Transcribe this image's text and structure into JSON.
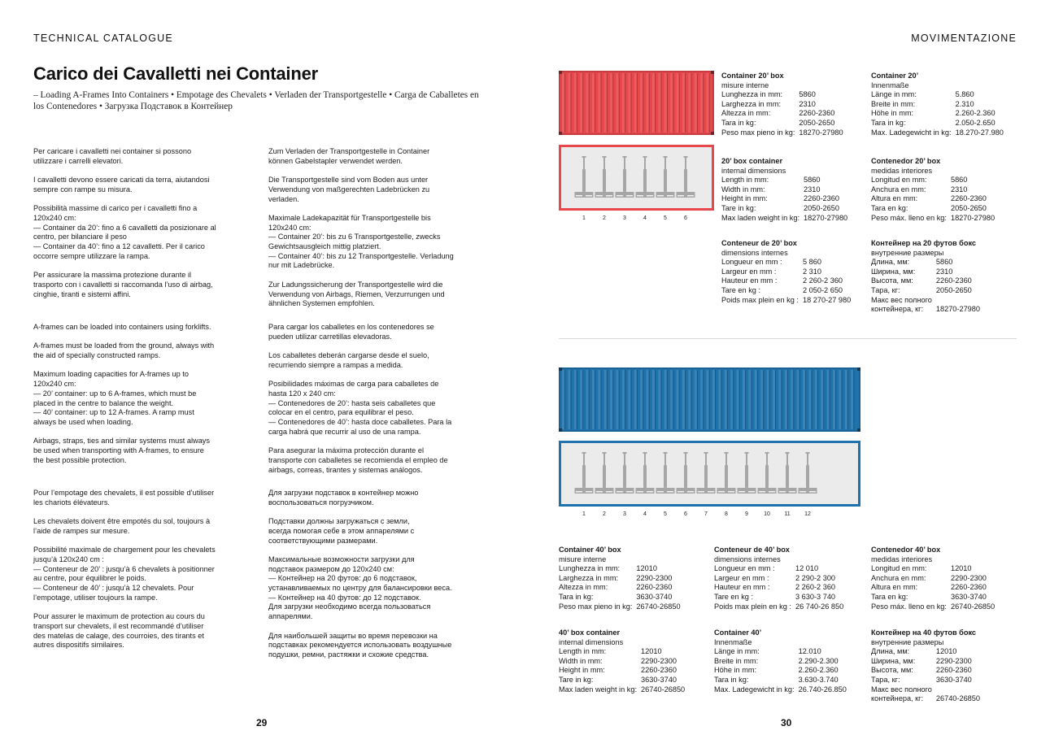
{
  "header": {
    "left": "TECHNICAL CATALOGUE",
    "right": "MOVIMENTAZIONE"
  },
  "title": "Carico dei Cavalletti nei Container",
  "subtitle": "– Loading A-Frames Into Containers • Empotage des Chevalets • Verladen der Transportgestelle • Carga de Caballetes en los Contenedores • Загрузка Подставок в Контейнер",
  "columns": {
    "it": [
      "Per caricare i cavalletti nei container si possono\nutilizzare i carrelli elevatori.",
      "I cavalletti devono essere caricati da terra, aiutandosi\nsempre con rampe su misura.",
      "Possibilità massime di carico per i cavalletti fino a\n120x240 cm:\n— Container da 20’: fino a 6 cavalletti da posizionare al\ncentro, per bilanciare il peso\n— Container da 40’: fino a 12 cavalletti. Per il carico\noccorre sempre utilizzare la rampa.",
      "Per assicurare la massima protezione durante il\ntrasporto con i cavalletti si raccomanda l’uso di airbag,\ncinghie, tiranti e sistemi affini."
    ],
    "en": [
      "A-frames can be loaded into containers using forklifts.",
      "A-frames must be loaded from the ground, always with\nthe aid of specially constructed ramps.",
      "Maximum loading capacities for A-frames up to\n120x240 cm:\n— 20’ container: up to 6 A-frames, which must be\nplaced in the centre to balance the weight.\n— 40’ container: up to 12 A-frames. A ramp must\nalways be used when loading.",
      "Airbags, straps, ties and similar systems must always\nbe used when transporting with A-frames, to ensure\nthe best possible protection."
    ],
    "fr": [
      "Pour l’empotage des chevalets, il est possible d’utiliser\nles chariots élévateurs.",
      "Les chevalets doivent être empotés du sol, toujours à\nl’aide de rampes sur mesure.",
      "Possibilité maximale de chargement pour les chevalets\njusqu’à 120x240 cm :\n— Conteneur de 20’ : jusqu’à 6 chevalets à positionner\nau centre, pour équilibrer le poids.\n— Conteneur de 40’ : jusqu’à 12 chevalets. Pour\nl’empotage, utiliser toujours la rampe.",
      "Pour assurer le maximum de protection au cours du\ntransport sur chevalets, il est recommandé d’utiliser\ndes matelas de calage, des courroies, des tirants et\nautres dispositifs similaires."
    ],
    "de": [
      "Zum Verladen der Transportgestelle in Container\nkönnen Gabelstapler verwendet werden.",
      "Die Transportgestelle sind vom Boden aus unter\nVerwendung von maßgerechten Ladebrücken zu\nverladen.",
      "Maximale Ladekapazität für Transportgestelle bis\n120x240 cm:\n— Container 20’: bis zu 6 Transportgestelle, zwecks\nGewichtsausgleich mittig platziert.\n— Container 40’: bis zu 12 Transportgestelle. Verladung\nnur mit Ladebrücke.",
      "Zur Ladungssicherung der Transportgestelle wird die\nVerwendung von Airbags, Riemen, Verzurrungen und\nähnlichen Systemen empfohlen."
    ],
    "es": [
      "Para cargar los caballetes en los contenedores se\npueden utilizar carretillas elevadoras.",
      "Los caballetes deberán cargarse desde el suelo,\nrecurriendo siempre a rampas a medida.",
      "Posibilidades máximas de carga para caballetes de\nhasta 120 x 240 cm:\n— Contenedores de 20’: hasta seis caballetes que\ncolocar en el centro, para equilibrar el peso.\n— Contenedores de 40’: hasta doce caballetes. Para la\ncarga habrá que recurrir al uso de una rampa.",
      "Para asegurar la máxima protección durante el\ntransporte con caballetes se recomienda el empleo de\nairbags, correas, tirantes y sistemas análogos."
    ],
    "ru": [
      "Для загрузки подставок в контейнер можно\nвоспользоваться погрузчиком.",
      "Подставки должны загружаться с земли,\nвсегда помогая себе в этом аппарелями с\nсоответствующими размерами.",
      "Максимальные возможности загрузки для\nподставок размером до 120x240 см:\n— Контейнер на 20 футов: до 6 подставок,\nустанавливаемых по центру для балансировки веса.\n— Контейнер на 40 футов: до 12 подставок.\nДля загрузки необходимо всегда пользоваться\nаппарелями.",
      "Для наибольшей защиты во время перевозки на\nподставках рекомендуется использовать воздушные\nподушки, ремни, растяжки и схожие средства."
    ]
  },
  "container20": {
    "color": "#e8474c",
    "positions": [
      "1",
      "2",
      "3",
      "4",
      "5",
      "6"
    ],
    "specs": [
      {
        "title": "Container 20’ box",
        "sub": "misure interne",
        "rows": [
          [
            "Lunghezza in mm:",
            "5860"
          ],
          [
            "Larghezza in mm:",
            "2310"
          ],
          [
            "Altezza in mm:",
            "2260-2360"
          ],
          [
            "Tara in kg:",
            "2050-2650"
          ],
          [
            "Peso max pieno in kg:",
            "18270-27980"
          ]
        ]
      },
      {
        "title": "Container 20’",
        "sub": "Innenmaße",
        "rows": [
          [
            "Länge in mm:",
            "5.860"
          ],
          [
            "Breite in mm:",
            "2.310"
          ],
          [
            "Höhe in mm:",
            "2.260-2.360"
          ],
          [
            "Tara in kg:",
            "2.050-2.650"
          ],
          [
            "Max. Ladegewicht in kg:",
            "18.270-27.980"
          ]
        ]
      },
      {
        "title": "20’ box container",
        "sub": "internal dimensions",
        "rows": [
          [
            "Length in mm:",
            "5860"
          ],
          [
            "Width in mm:",
            "2310"
          ],
          [
            "Height in mm:",
            "2260-2360"
          ],
          [
            "Tare in kg:",
            "2050-2650"
          ],
          [
            "Max laden weight in kg:",
            "18270-27980"
          ]
        ]
      },
      {
        "title": "Contenedor 20’ box",
        "sub": "medidas interiores",
        "rows": [
          [
            "Longitud en mm:",
            "5860"
          ],
          [
            "Anchura en mm:",
            "2310"
          ],
          [
            "Altura en mm:",
            "2260-2360"
          ],
          [
            "Tara en kg:",
            "2050-2650"
          ],
          [
            "Peso máx. lleno en kg:",
            "18270-27980"
          ]
        ]
      },
      {
        "title": "Conteneur de 20’ box",
        "sub": "dimensions internes",
        "rows": [
          [
            "Longueur en mm :",
            "5 860"
          ],
          [
            "Largeur en mm :",
            "2 310"
          ],
          [
            "Hauteur en mm :",
            "2 260-2 360"
          ],
          [
            "Tare en kg :",
            "2 050-2 650"
          ],
          [
            "Poids max plein en kg :",
            "18 270-27 980"
          ]
        ]
      },
      {
        "title": "Контейнер на 20 футов бокс",
        "sub": "внутренние размеры",
        "rows": [
          [
            "Длина, мм:",
            "5860"
          ],
          [
            "Ширина, мм:",
            "2310"
          ],
          [
            "Высота, мм:",
            "2260-2360"
          ],
          [
            "Тара, кг:",
            "2050-2650"
          ],
          [
            "Макс вес полного",
            ""
          ],
          [
            "контейнера, кг:",
            "18270-27980"
          ]
        ]
      }
    ]
  },
  "container40": {
    "color": "#1f73ad",
    "positions": [
      "1",
      "2",
      "3",
      "4",
      "5",
      "6",
      "7",
      "8",
      "9",
      "10",
      "11",
      "12"
    ],
    "specs": [
      {
        "title": "Container 40’ box",
        "sub": "misure interne",
        "rows": [
          [
            "Lunghezza in mm:",
            "12010"
          ],
          [
            "Larghezza in mm:",
            "2290-2300"
          ],
          [
            "Altezza in mm:",
            "2260-2360"
          ],
          [
            "Tara in kg:",
            "3630-3740"
          ],
          [
            "Peso max pieno in kg:",
            "26740-26850"
          ]
        ]
      },
      {
        "title": "Conteneur de 40’ box",
        "sub": "dimensions internes",
        "rows": [
          [
            "Longueur en mm :",
            "12 010"
          ],
          [
            "Largeur en mm :",
            "2 290-2 300"
          ],
          [
            "Hauteur en mm :",
            "2 260-2 360"
          ],
          [
            "Tare en kg :",
            "3 630-3 740"
          ],
          [
            "Poids max plein en kg :",
            "26 740-26 850"
          ]
        ]
      },
      {
        "title": "Contenedor 40’ box",
        "sub": "medidas interiores",
        "rows": [
          [
            "Longitud en mm:",
            "12010"
          ],
          [
            "Anchura en mm:",
            "2290-2300"
          ],
          [
            "Altura en mm:",
            "2260-2360"
          ],
          [
            "Tara en kg:",
            "3630-3740"
          ],
          [
            "Peso máx. lleno en kg:",
            "26740-26850"
          ]
        ]
      },
      {
        "title": "40’ box container",
        "sub": "internal dimensions",
        "rows": [
          [
            "Length in mm:",
            "12010"
          ],
          [
            "Width in mm:",
            "2290-2300"
          ],
          [
            "Height in mm:",
            "2260-2360"
          ],
          [
            "Tare in kg:",
            "3630-3740"
          ],
          [
            "Max laden weight in kg:",
            "26740-26850"
          ]
        ]
      },
      {
        "title": "Container 40’",
        "sub": "Innenmaße",
        "rows": [
          [
            "Länge in mm:",
            "12.010"
          ],
          [
            "Breite in mm:",
            "2.290-2.300"
          ],
          [
            "Höhe in mm:",
            "2.260-2.360"
          ],
          [
            "Tara in kg:",
            "3.630-3.740"
          ],
          [
            "Max. Ladegewicht in kg:",
            "26.740-26.850"
          ]
        ]
      },
      {
        "title": "Контейнер на 40 футов бокс",
        "sub": "внутренние размеры",
        "rows": [
          [
            "Длина, мм:",
            "12010"
          ],
          [
            "Ширина, мм:",
            "2290-2300"
          ],
          [
            "Высота, мм:",
            "2260-2360"
          ],
          [
            "Тара, кг:",
            "3630-3740"
          ],
          [
            "Макс вес полного",
            ""
          ],
          [
            "контейнера, кг:",
            "26740-26850"
          ]
        ]
      }
    ]
  },
  "page_numbers": {
    "left": "29",
    "right": "30"
  }
}
